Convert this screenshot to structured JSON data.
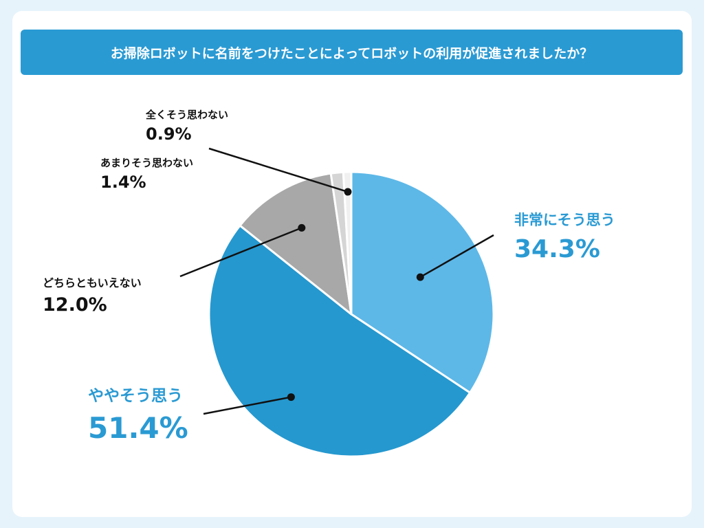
{
  "title": "お掃除ロボットに名前をつけたことによってロボットの利用が促進されましたか？",
  "chart_data": {
    "type": "pie",
    "title": "お掃除ロボットに名前をつけたことによってロボットの利用が促進されましたか？",
    "slices": [
      {
        "label": "非常にそう思う",
        "value": 34.3,
        "value_label": "34.3%",
        "color": "#5db8e8"
      },
      {
        "label": "ややそう思う",
        "value": 51.4,
        "value_label": "51.4%",
        "color": "#2598cf"
      },
      {
        "label": "どちらともいえない",
        "value": 12.0,
        "value_label": "12.0%",
        "color": "#a8a8a8"
      },
      {
        "label": "あまりそう思わない",
        "value": 1.4,
        "value_label": "1.4%",
        "color": "#d5d5d5"
      },
      {
        "label": "全くそう思わない",
        "value": 0.9,
        "value_label": "0.9%",
        "color": "#f0f0f0"
      }
    ]
  }
}
